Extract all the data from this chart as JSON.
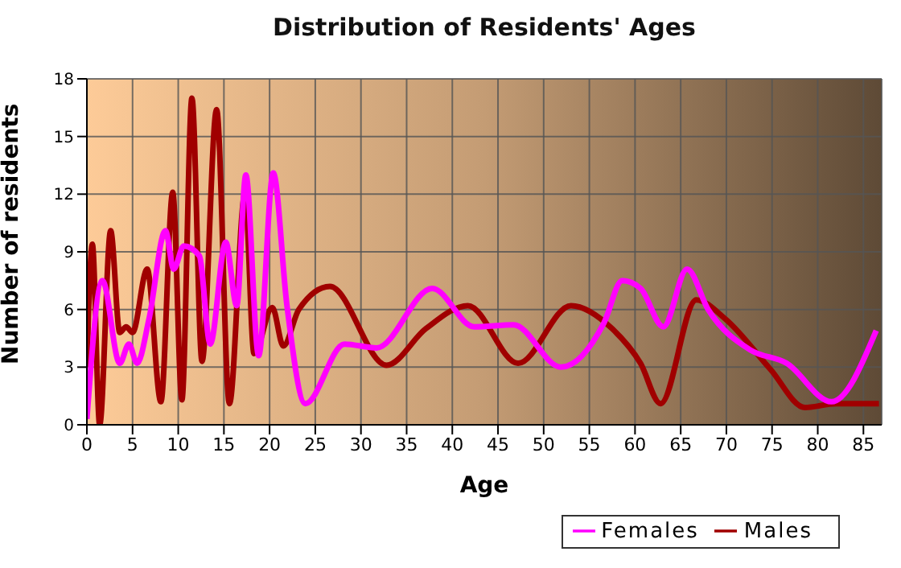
{
  "chart_data": {
    "type": "line",
    "title": "Distribution of Residents' Ages",
    "xlabel": "Age",
    "ylabel": "Number of residents",
    "xlim": [
      0,
      87
    ],
    "xticks": [
      0,
      5,
      10,
      15,
      20,
      25,
      30,
      35,
      40,
      45,
      50,
      55,
      60,
      65,
      70,
      75,
      80,
      85
    ],
    "ylim": [
      0,
      18
    ],
    "yticks": [
      0,
      3,
      6,
      9,
      12,
      15,
      18
    ],
    "grid": true,
    "legend": "bottom right",
    "marker": "none",
    "line_style": "solid",
    "series": [
      {
        "name": "Males",
        "color": "#a00000",
        "x": [
          0,
          0.6,
          1.4,
          2.6,
          3.6,
          4.3,
          5,
          6.6,
          8.1,
          9.4,
          10.4,
          11.5,
          12.6,
          14.2,
          15.6,
          17.3,
          18.3,
          20.3,
          21.5,
          23.2,
          26.6,
          32.8,
          37.1,
          41.7,
          47.2,
          53,
          57.5,
          60.6,
          62.8,
          66.7,
          69.9,
          74.8,
          78.6,
          82,
          86.7
        ],
        "values": [
          3,
          9.4,
          0,
          10.1,
          4.8,
          5.1,
          4.8,
          8.1,
          1.2,
          12.1,
          1.3,
          17,
          3.3,
          16.4,
          1.1,
          12,
          3.7,
          6.1,
          4.1,
          6,
          7.2,
          3.1,
          5,
          6.2,
          3.2,
          6.2,
          5,
          3.2,
          1.1,
          6.5,
          5.5,
          2.9,
          0.9,
          1.1,
          1.1
        ]
      },
      {
        "name": "Females",
        "color": "#ff00ff",
        "x": [
          0,
          1.7,
          3.6,
          4.6,
          5.5,
          6.8,
          8.6,
          9.5,
          10.6,
          12.3,
          13.5,
          15.2,
          16.4,
          17.4,
          18.8,
          20.4,
          21.9,
          23.9,
          28.2,
          31.7,
          37.8,
          42.4,
          46.7,
          51.9,
          56.6,
          58.6,
          60.6,
          63.1,
          65.7,
          68,
          72.6,
          76.6,
          81.5,
          86.4
        ],
        "values": [
          0.3,
          7.5,
          3.2,
          4.2,
          3.2,
          5.5,
          10.1,
          8.1,
          9.3,
          8.8,
          4.2,
          9.5,
          6.2,
          13,
          3.6,
          13.1,
          6.2,
          1.1,
          4.2,
          4,
          7.1,
          5.1,
          5.2,
          3,
          5.3,
          7.5,
          7.1,
          5.1,
          8.1,
          6,
          3.9,
          3.2,
          1.2,
          4.9
        ]
      }
    ]
  }
}
